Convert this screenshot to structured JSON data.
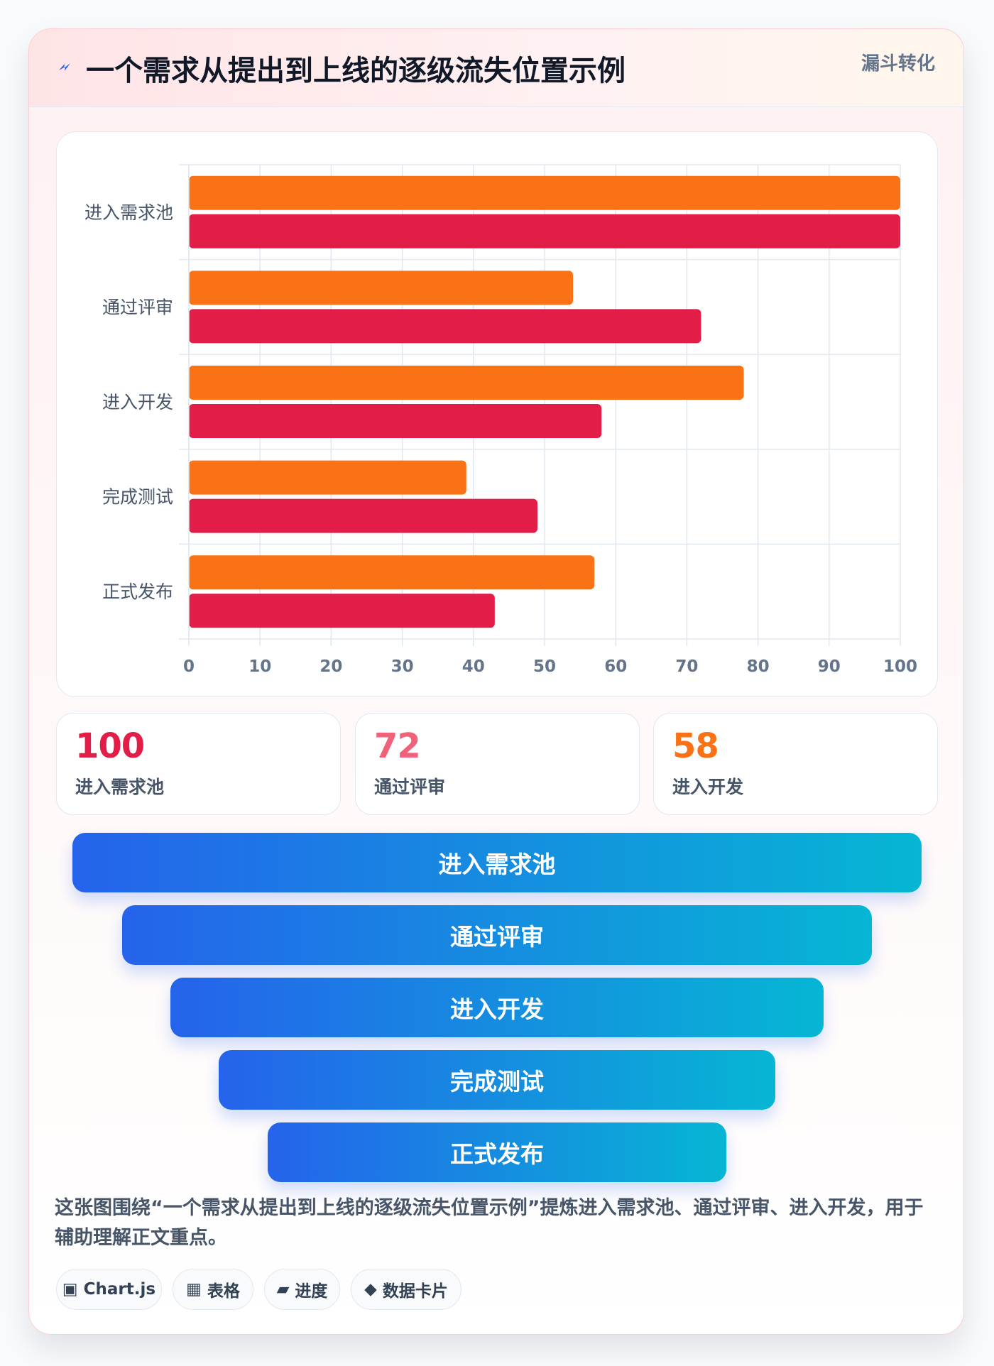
{
  "header": {
    "icon": "lightning-icon",
    "title": "一个需求从提出到上线的逐级流失位置示例",
    "badge": "漏斗转化"
  },
  "colors": {
    "series_a": "#f97316",
    "series_b": "#e11d48",
    "stat_1": "#e11d48",
    "stat_2": "#f0627a",
    "stat_3": "#f97316",
    "funnel_start": "#2563eb",
    "funnel_end": "#06b6d4"
  },
  "chart_data": {
    "type": "bar",
    "orientation": "horizontal",
    "categories": [
      "进入需求池",
      "通过评审",
      "进入开发",
      "完成测试",
      "正式发布"
    ],
    "series": [
      {
        "values": [
          100,
          54,
          78,
          39,
          57
        ]
      },
      {
        "values": [
          100,
          72,
          58,
          49,
          43
        ]
      }
    ],
    "xlim": [
      0,
      100
    ],
    "x_ticks": [
      "0",
      "10",
      "20",
      "30",
      "40",
      "50",
      "60",
      "70",
      "80",
      "90",
      "100"
    ],
    "grid": true,
    "legend": "none"
  },
  "stats": [
    {
      "value": "100",
      "label": "进入需求池"
    },
    {
      "value": "72",
      "label": "通过评审"
    },
    {
      "value": "58",
      "label": "进入开发"
    }
  ],
  "funnel": [
    "进入需求池",
    "通过评审",
    "进入开发",
    "完成测试",
    "正式发布"
  ],
  "description": "这张图围绕“一个需求从提出到上线的逐级流失位置示例”提炼进入需求池、通过评审、进入开发，用于辅助理解正文重点。",
  "tags": [
    {
      "icon": "▣",
      "label": "Chart.js"
    },
    {
      "icon": "▦",
      "label": "表格"
    },
    {
      "icon": "▰",
      "label": "进度"
    },
    {
      "icon": "◆",
      "label": "数据卡片"
    }
  ]
}
